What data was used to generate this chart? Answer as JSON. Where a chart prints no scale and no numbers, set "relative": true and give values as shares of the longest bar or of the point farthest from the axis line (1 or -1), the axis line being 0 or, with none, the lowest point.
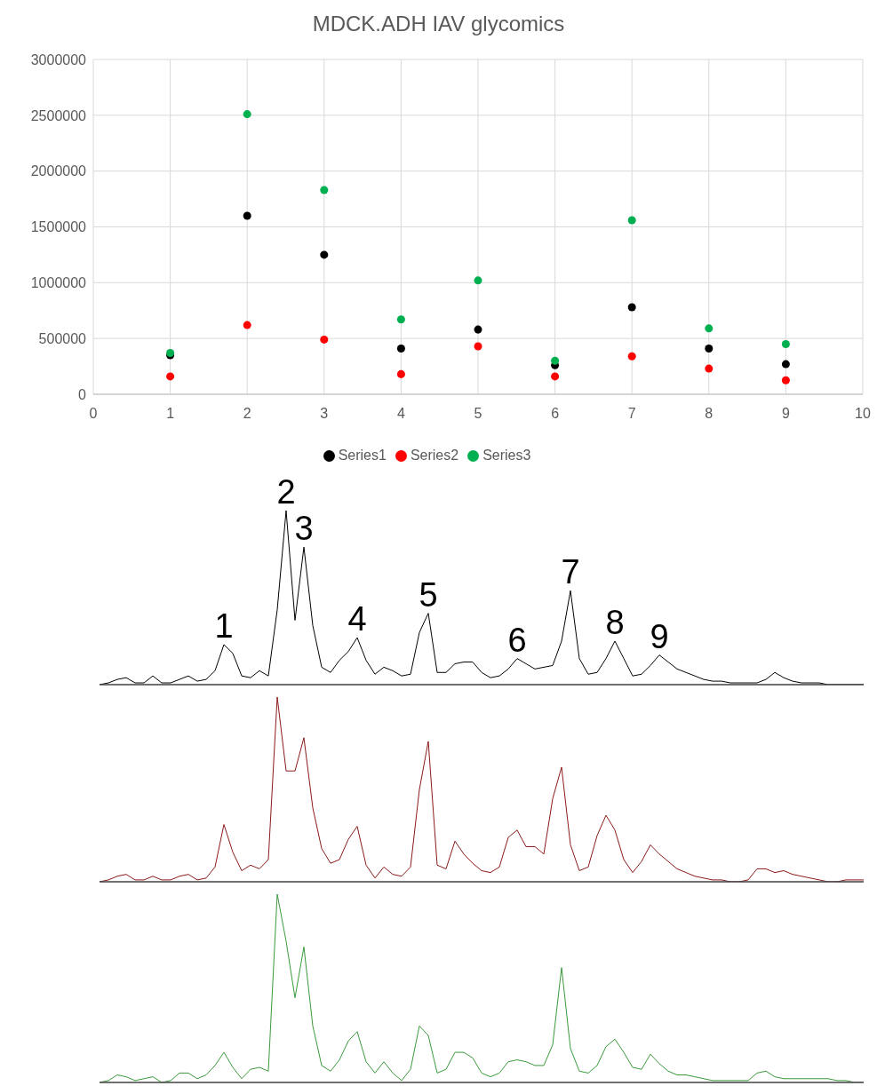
{
  "chart_data": [
    {
      "type": "scatter",
      "title": "MDCK.ADH IAV glycomics",
      "x": [
        1,
        2,
        3,
        4,
        5,
        6,
        7,
        8,
        9
      ],
      "xlim": [
        0,
        10
      ],
      "xticks": [
        0,
        1,
        2,
        3,
        4,
        5,
        6,
        7,
        8,
        9,
        10
      ],
      "ylim": [
        0,
        3000000
      ],
      "yticks": [
        0,
        500000,
        1000000,
        1500000,
        2000000,
        2500000,
        3000000
      ],
      "grid": true,
      "legend": "bottom",
      "marker": "circle",
      "series": [
        {
          "name": "Series1",
          "color": "#000000",
          "values": [
            350000,
            1600000,
            1250000,
            410000,
            580000,
            260000,
            780000,
            410000,
            270000
          ]
        },
        {
          "name": "Series2",
          "color": "#ff0000",
          "values": [
            160000,
            620000,
            490000,
            180000,
            430000,
            160000,
            340000,
            230000,
            125000
          ]
        },
        {
          "name": "Series3",
          "color": "#00b050",
          "values": [
            370000,
            2510000,
            1830000,
            670000,
            1020000,
            300000,
            1560000,
            590000,
            450000
          ]
        }
      ]
    },
    {
      "type": "line",
      "relative": true,
      "categories": [
        null,
        null,
        null,
        null,
        null,
        null,
        null,
        null,
        null,
        null,
        null,
        null,
        null,
        null,
        null,
        null,
        null,
        null,
        null,
        null,
        null,
        null,
        null,
        null,
        null,
        null,
        null,
        null,
        null,
        null,
        null,
        null,
        null,
        null,
        null,
        null,
        null,
        null,
        null,
        null,
        null,
        null,
        null,
        null,
        null,
        null,
        null,
        null,
        null,
        null,
        null,
        null,
        null,
        null,
        null,
        null,
        null,
        null,
        null,
        null,
        null,
        null,
        null,
        null,
        null,
        null,
        null,
        null,
        null,
        null,
        null,
        null,
        null,
        null,
        null,
        null,
        null,
        null,
        null,
        null,
        null,
        null,
        null,
        null,
        null,
        null,
        null
      ],
      "series": [
        {
          "color": "#000000",
          "values": [
            0,
            0.01,
            0.03,
            0.04,
            0.01,
            0.01,
            0.05,
            0.01,
            0.01,
            0.03,
            0.05,
            0.02,
            0.03,
            0.08,
            0.23,
            0.18,
            0.05,
            0.04,
            0.08,
            0.05,
            0.43,
            1,
            0.37,
            0.79,
            0.34,
            0.1,
            0.07,
            0.14,
            0.19,
            0.27,
            0.14,
            0.06,
            0.1,
            0.08,
            0.05,
            0.06,
            0.3,
            0.41,
            0.07,
            0.07,
            0.12,
            0.13,
            0.13,
            0.07,
            0.04,
            0.05,
            0.09,
            0.15,
            0.12,
            0.09,
            0.1,
            0.11,
            0.25,
            0.54,
            0.15,
            0.06,
            0.07,
            0.15,
            0.25,
            0.15,
            0.05,
            0.06,
            0.11,
            0.17,
            0.13,
            0.09,
            0.07,
            0.05,
            0.03,
            0.02,
            0.02,
            0.01,
            0.01,
            0.01,
            0.01,
            0.03,
            0.07,
            0.04,
            0.02,
            0.01,
            0.01,
            0.01,
            0,
            0,
            0,
            0,
            0
          ]
        }
      ],
      "annotations": [
        {
          "text": "1",
          "y": 0.23
        },
        {
          "text": "2",
          "y": 1
        },
        {
          "text": "3",
          "y": 0.79
        },
        {
          "text": "4",
          "y": 0.27
        },
        {
          "text": "5",
          "y": 0.41
        },
        {
          "text": "6",
          "y": 0.15
        },
        {
          "text": "7",
          "y": 0.54
        },
        {
          "text": "8",
          "y": 0.25
        },
        {
          "text": "9",
          "y": 0.17
        }
      ]
    },
    {
      "type": "line",
      "relative": true,
      "categories": [
        null,
        null,
        null,
        null,
        null,
        null,
        null,
        null,
        null,
        null,
        null,
        null,
        null,
        null,
        null,
        null,
        null,
        null,
        null,
        null,
        null,
        null,
        null,
        null,
        null,
        null,
        null,
        null,
        null,
        null,
        null,
        null,
        null,
        null,
        null,
        null,
        null,
        null,
        null,
        null,
        null,
        null,
        null,
        null,
        null,
        null,
        null,
        null,
        null,
        null,
        null,
        null,
        null,
        null,
        null,
        null,
        null,
        null,
        null,
        null,
        null,
        null,
        null,
        null,
        null,
        null,
        null,
        null,
        null,
        null,
        null,
        null,
        null,
        null,
        null,
        null,
        null,
        null,
        null,
        null,
        null,
        null,
        null,
        null,
        null,
        null,
        null
      ],
      "series": [
        {
          "color": "#8b1a1a",
          "values": [
            0,
            0.01,
            0.03,
            0.04,
            0.01,
            0.01,
            0.03,
            0.01,
            0.01,
            0.03,
            0.04,
            0.01,
            0.02,
            0.08,
            0.31,
            0.16,
            0.06,
            0.09,
            0.07,
            0.12,
            1,
            0.6,
            0.6,
            0.78,
            0.4,
            0.18,
            0.1,
            0.12,
            0.23,
            0.3,
            0.09,
            0.02,
            0.08,
            0.04,
            0.03,
            0.08,
            0.5,
            0.76,
            0.09,
            0.07,
            0.22,
            0.15,
            0.1,
            0.06,
            0.05,
            0.08,
            0.24,
            0.28,
            0.19,
            0.19,
            0.15,
            0.45,
            0.62,
            0.2,
            0.06,
            0.08,
            0.25,
            0.36,
            0.28,
            0.12,
            0.05,
            0.11,
            0.2,
            0.15,
            0.11,
            0.07,
            0.05,
            0.03,
            0.02,
            0.01,
            0.01,
            0,
            0,
            0.01,
            0.07,
            0.07,
            0.05,
            0.06,
            0.04,
            0.03,
            0.02,
            0.01,
            0,
            0,
            0.01,
            0.01,
            0.01
          ]
        }
      ]
    },
    {
      "type": "line",
      "relative": true,
      "categories": [
        null,
        null,
        null,
        null,
        null,
        null,
        null,
        null,
        null,
        null,
        null,
        null,
        null,
        null,
        null,
        null,
        null,
        null,
        null,
        null,
        null,
        null,
        null,
        null,
        null,
        null,
        null,
        null,
        null,
        null,
        null,
        null,
        null,
        null,
        null,
        null,
        null,
        null,
        null,
        null,
        null,
        null,
        null,
        null,
        null,
        null,
        null,
        null,
        null,
        null,
        null,
        null,
        null,
        null,
        null,
        null,
        null,
        null,
        null,
        null,
        null,
        null,
        null,
        null,
        null,
        null,
        null,
        null,
        null,
        null,
        null,
        null,
        null,
        null,
        null,
        null,
        null,
        null,
        null,
        null,
        null,
        null,
        null,
        null,
        null,
        null,
        null
      ],
      "series": [
        {
          "color": "#3a9a3a",
          "values": [
            0,
            0.01,
            0.04,
            0.03,
            0.01,
            0.02,
            0.03,
            0,
            0.01,
            0.05,
            0.05,
            0.02,
            0.04,
            0.09,
            0.16,
            0.08,
            0.02,
            0.07,
            0.08,
            0.06,
            1,
            0.75,
            0.45,
            0.72,
            0.3,
            0.09,
            0.06,
            0.12,
            0.22,
            0.27,
            0.11,
            0.05,
            0.11,
            0.05,
            0.01,
            0.07,
            0.3,
            0.25,
            0.05,
            0.07,
            0.16,
            0.16,
            0.13,
            0.05,
            0.03,
            0.05,
            0.11,
            0.12,
            0.11,
            0.09,
            0.09,
            0.2,
            0.61,
            0.18,
            0.06,
            0.05,
            0.09,
            0.19,
            0.23,
            0.16,
            0.08,
            0.07,
            0.15,
            0.1,
            0.06,
            0.04,
            0.04,
            0.03,
            0.02,
            0.01,
            0.01,
            0.01,
            0.01,
            0.01,
            0.05,
            0.06,
            0.03,
            0.02,
            0.02,
            0.02,
            0.02,
            0.02,
            0.02,
            0.01,
            0.01,
            0,
            0
          ]
        }
      ]
    }
  ]
}
